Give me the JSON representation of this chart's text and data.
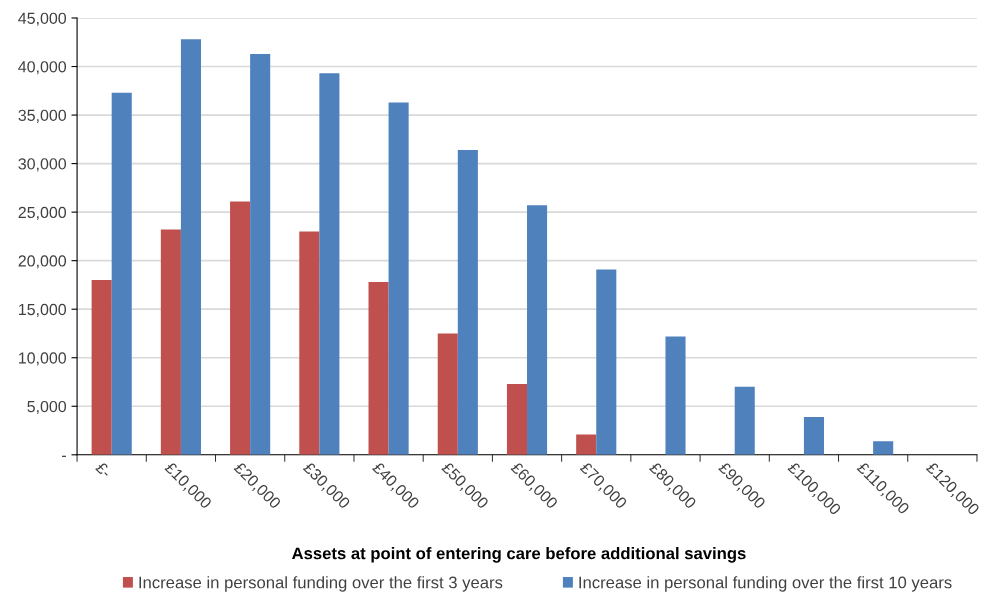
{
  "chart_data": {
    "type": "bar",
    "xlabel": "Assets at point of entering care before additional savings",
    "categories": [
      "£-",
      "£10,000",
      "£20,000",
      "£30,000",
      "£40,000",
      "£50,000",
      "£60,000",
      "£70,000",
      "£80,000",
      "£90,000",
      "£100,000",
      "£110,000",
      "£120,000"
    ],
    "series": [
      {
        "name": "Increase in personal funding over the first 3 years",
        "color": "#c0504d",
        "values": [
          18000,
          23200,
          26100,
          23000,
          17800,
          12500,
          7300,
          2100,
          null,
          null,
          null,
          null,
          null
        ]
      },
      {
        "name": "Increase in personal funding over the first 10 years",
        "color": "#4f81bd",
        "values": [
          37300,
          42800,
          41300,
          39300,
          36300,
          31400,
          25700,
          19100,
          12200,
          7000,
          3900,
          1400,
          null
        ]
      }
    ],
    "ylim": [
      0,
      45000
    ],
    "yticks": [
      {
        "value": 0,
        "label": "-"
      },
      {
        "value": 5000,
        "label": "5,000"
      },
      {
        "value": 10000,
        "label": "10,000"
      },
      {
        "value": 15000,
        "label": "15,000"
      },
      {
        "value": 20000,
        "label": "20,000"
      },
      {
        "value": 25000,
        "label": "25,000"
      },
      {
        "value": 30000,
        "label": "30,000"
      },
      {
        "value": 35000,
        "label": "35,000"
      },
      {
        "value": 40000,
        "label": "40,000"
      },
      {
        "value": 45000,
        "label": "45,000"
      }
    ],
    "grid": "y",
    "legend": "bottom"
  }
}
